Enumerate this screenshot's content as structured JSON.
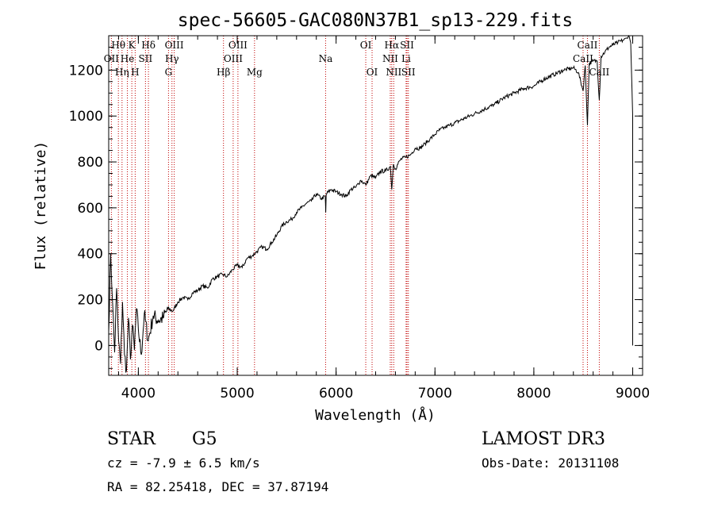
{
  "colors": {
    "line_marker": "#c00000",
    "spectrum": "#000000",
    "axes": "#000000"
  },
  "chart_data": {
    "type": "line",
    "title": "spec-56605-GAC080N37B1_sp13-229.fits",
    "xlabel": "Wavelength (Å)",
    "ylabel": "Flux (relative)",
    "xlim": [
      3700,
      9100
    ],
    "ylim": [
      -130,
      1350
    ],
    "x_ticks": [
      4000,
      5000,
      6000,
      7000,
      8000,
      9000
    ],
    "x_tick_labels": [
      "4000",
      "5000",
      "6000",
      "7000",
      "8000",
      "9000"
    ],
    "y_ticks": [
      0,
      200,
      400,
      600,
      800,
      1000,
      1200
    ],
    "y_tick_labels": [
      "0",
      "200",
      "400",
      "600",
      "800",
      "1000",
      "1200"
    ],
    "series": [
      {
        "name": "spectrum",
        "x": [
          3700,
          3720,
          3740,
          3760,
          3780,
          3800,
          3820,
          3840,
          3860,
          3880,
          3900,
          3920,
          3940,
          3960,
          3980,
          4000,
          4030,
          4060,
          4100,
          4150,
          4200,
          4250,
          4300,
          4350,
          4400,
          4450,
          4500,
          4550,
          4600,
          4650,
          4700,
          4750,
          4800,
          4850,
          4900,
          4950,
          5000,
          5050,
          5100,
          5150,
          5200,
          5250,
          5300,
          5350,
          5400,
          5450,
          5500,
          5550,
          5600,
          5650,
          5700,
          5750,
          5800,
          5850,
          5890,
          5895,
          5900,
          5950,
          6000,
          6050,
          6100,
          6150,
          6200,
          6250,
          6300,
          6350,
          6400,
          6450,
          6500,
          6550,
          6563,
          6580,
          6600,
          6650,
          6700,
          6750,
          6800,
          6850,
          6900,
          6950,
          7000,
          7050,
          7100,
          7150,
          7200,
          7300,
          7400,
          7500,
          7600,
          7700,
          7800,
          7900,
          8000,
          8100,
          8200,
          8300,
          8400,
          8450,
          8498,
          8520,
          8542,
          8560,
          8600,
          8640,
          8662,
          8680,
          8720,
          8760,
          8800,
          8850,
          8900,
          8940,
          8960,
          8980,
          9000
        ],
        "y": [
          60,
          400,
          180,
          -30,
          250,
          20,
          -80,
          190,
          -40,
          -110,
          120,
          -60,
          90,
          -20,
          160,
          70,
          -40,
          140,
          20,
          130,
          110,
          120,
          160,
          150,
          190,
          210,
          200,
          230,
          240,
          260,
          250,
          290,
          300,
          310,
          300,
          330,
          350,
          340,
          380,
          390,
          410,
          430,
          420,
          450,
          480,
          520,
          540,
          550,
          580,
          600,
          620,
          630,
          660,
          640,
          650,
          580,
          660,
          680,
          670,
          660,
          650,
          680,
          690,
          720,
          700,
          740,
          730,
          760,
          760,
          780,
          680,
          790,
          770,
          810,
          820,
          830,
          860,
          860,
          880,
          900,
          920,
          940,
          950,
          960,
          970,
          990,
          1010,
          1030,
          1050,
          1080,
          1100,
          1120,
          1130,
          1160,
          1180,
          1200,
          1210,
          1190,
          1110,
          1220,
          960,
          1230,
          1240,
          1240,
          1070,
          1260,
          1280,
          1300,
          1310,
          1320,
          1330,
          1340,
          1350,
          1320,
          1000
        ]
      }
    ],
    "emission_lines": [
      {
        "label": "Hθ",
        "wavelength": 3798,
        "row": 0
      },
      {
        "label": "OII",
        "wavelength": 3727,
        "row": 1
      },
      {
        "label": "Hη",
        "wavelength": 3835,
        "row": 2
      },
      {
        "label": "K",
        "wavelength": 3934,
        "row": 0
      },
      {
        "label": "He",
        "wavelength": 3889,
        "row": 1
      },
      {
        "label": "H",
        "wavelength": 3968,
        "row": 2
      },
      {
        "label": "Hδ",
        "wavelength": 4102,
        "row": 0
      },
      {
        "label": "SII",
        "wavelength": 4072,
        "row": 1
      },
      {
        "label": "OIII",
        "wavelength": 4363,
        "row": 0
      },
      {
        "label": "Hγ",
        "wavelength": 4340,
        "row": 1
      },
      {
        "label": "G",
        "wavelength": 4305,
        "row": 2
      },
      {
        "label": "Hβ",
        "wavelength": 4861,
        "row": 2
      },
      {
        "label": "OIII",
        "wavelength": 5007,
        "row": 0
      },
      {
        "label": "OIII",
        "wavelength": 4959,
        "row": 1
      },
      {
        "label": "Mg",
        "wavelength": 5175,
        "row": 2
      },
      {
        "label": "Na",
        "wavelength": 5894,
        "row": 1
      },
      {
        "label": "OI",
        "wavelength": 6300,
        "row": 0
      },
      {
        "label": "OI",
        "wavelength": 6364,
        "row": 2
      },
      {
        "label": "Hα",
        "wavelength": 6563,
        "row": 0
      },
      {
        "label": "NII",
        "wavelength": 6548,
        "row": 1
      },
      {
        "label": "NII",
        "wavelength": 6583,
        "row": 2
      },
      {
        "label": "SII",
        "wavelength": 6717,
        "row": 0
      },
      {
        "label": "Li",
        "wavelength": 6708,
        "row": 1
      },
      {
        "label": "SII",
        "wavelength": 6731,
        "row": 2
      },
      {
        "label": "CaII",
        "wavelength": 8542,
        "row": 0
      },
      {
        "label": "CaII",
        "wavelength": 8498,
        "row": 1
      },
      {
        "label": "CaII",
        "wavelength": 8662,
        "row": 2
      }
    ]
  },
  "info": {
    "object_class": "STAR",
    "subclass": "G5",
    "survey": "LAMOST DR3",
    "redshift": "cz = -7.9 ± 6.5 km/s",
    "obs_date": "Obs-Date: 20131108",
    "coords": "RA =  82.25418, DEC =  37.87194"
  }
}
